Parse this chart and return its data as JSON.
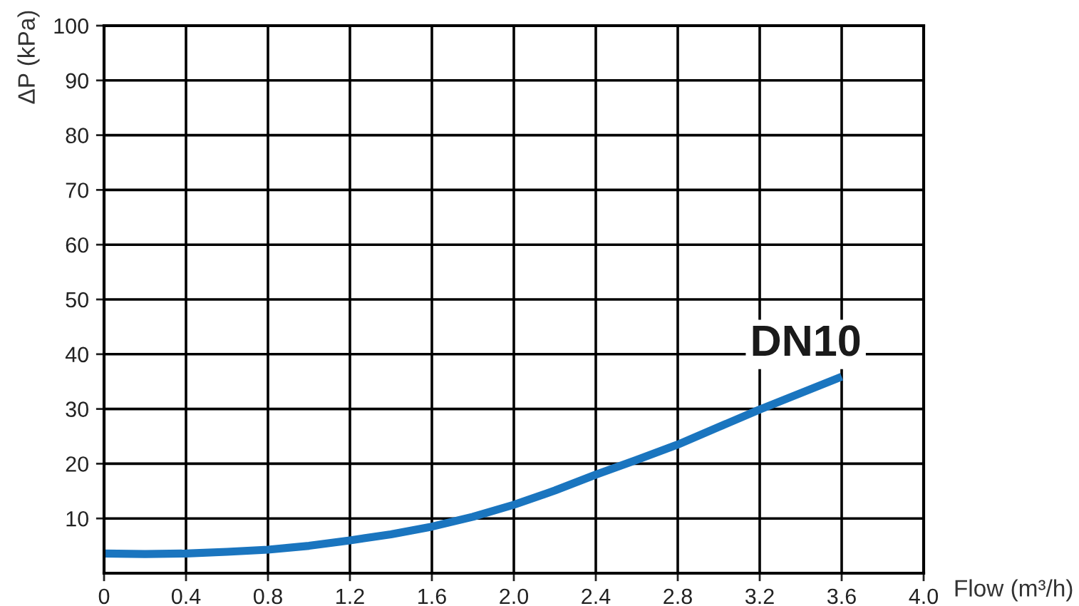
{
  "chart_data": {
    "type": "line",
    "xlabel": "Flow (m³/h)",
    "ylabel": "ΔP (kPa)",
    "x": [
      0,
      0.2,
      0.4,
      0.6,
      0.8,
      1.0,
      1.2,
      1.4,
      1.6,
      1.8,
      2.0,
      2.2,
      2.4,
      2.6,
      2.8,
      3.0,
      3.2,
      3.4,
      3.6
    ],
    "series": [
      {
        "name": "DN10",
        "color": "#1a75bf",
        "values": [
          3.6,
          3.5,
          3.6,
          3.9,
          4.3,
          5.0,
          6.0,
          7.1,
          8.5,
          10.3,
          12.5,
          15.1,
          18.0,
          20.7,
          23.5,
          26.7,
          29.9,
          32.9,
          35.9
        ]
      }
    ],
    "xlim": [
      0,
      4.0
    ],
    "ylim": [
      0,
      100
    ],
    "xticks": [
      0,
      0.4,
      0.8,
      1.2,
      1.6,
      {
        "value": 2.0,
        "label": "2.0"
      },
      2.4,
      2.8,
      3.2,
      3.6,
      {
        "value": 4.0,
        "label": "4.0"
      }
    ],
    "yticks": [
      10,
      20,
      30,
      40,
      50,
      60,
      70,
      80,
      90,
      100
    ],
    "grid": true,
    "legend": false,
    "marker": "none",
    "line_style": "solid"
  }
}
